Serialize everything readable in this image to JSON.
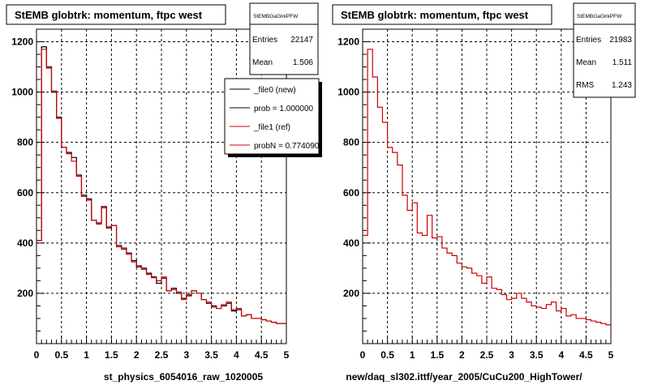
{
  "panels": [
    {
      "title": "StEMB globtrk: momentum, ftpc west",
      "stats": {
        "name": "StEMBGaGlrkPFW",
        "rows": [
          {
            "label": "Entries",
            "value": "22147"
          },
          {
            "label": "Mean",
            "value": "1.506"
          }
        ]
      },
      "legend": [
        {
          "label": "_file0 (new)",
          "color": "#000000"
        },
        {
          "label": "prob = 1.000000",
          "color": "#000000"
        },
        {
          "label": "_file1 (ref)",
          "color": "#cc0000"
        },
        {
          "label": "probN = 0.774090",
          "color": "#cc0000"
        }
      ],
      "xlabel": "st_physics_6054016_raw_1020005"
    },
    {
      "title": "StEMB globtrk: momentum, ftpc west",
      "stats": {
        "name": "StEMBGaGlrkPFW",
        "rows": [
          {
            "label": "Entries",
            "value": "21983"
          },
          {
            "label": "Mean",
            "value": "1.511"
          },
          {
            "label": "RMS",
            "value": "1.243"
          }
        ]
      },
      "xlabel": "new/daq_sl302.ittf/year_2005/CuCu200_HighTower/"
    }
  ],
  "colors": {
    "new": "#000000",
    "ref": "#cc0000",
    "grid": "#000000"
  },
  "chart_data": [
    {
      "type": "line",
      "title": "StEMB globtrk: momentum, ftpc west",
      "xlabel": "st_physics_6054016_raw_1020005",
      "ylabel": "",
      "xlim": [
        0,
        5
      ],
      "ylim": [
        0,
        1250
      ],
      "xticks": [
        "0",
        "0.5",
        "1",
        "1.5",
        "2",
        "2.5",
        "3",
        "3.5",
        "4",
        "4.5",
        "5"
      ],
      "yticks": [
        "200",
        "400",
        "600",
        "800",
        "1000",
        "1200"
      ],
      "bin_edges_start": 0,
      "bin_width": 0.1,
      "grid": true,
      "legend_position": "top-right",
      "series": [
        {
          "name": "_file0 (new)",
          "values": [
            410,
            1180,
            1100,
            1000,
            900,
            780,
            760,
            740,
            670,
            590,
            575,
            490,
            480,
            545,
            460,
            470,
            390,
            380,
            360,
            330,
            305,
            300,
            280,
            265,
            240,
            260,
            210,
            220,
            200,
            180,
            190,
            210,
            200,
            175,
            160,
            150,
            140,
            150,
            160,
            130,
            135,
            110,
            115,
            100,
            100,
            95,
            90,
            85,
            80,
            80
          ]
        },
        {
          "name": "_file1 (ref)",
          "values": [
            410,
            1170,
            1095,
            1005,
            895,
            780,
            755,
            725,
            665,
            585,
            570,
            490,
            475,
            540,
            465,
            470,
            385,
            375,
            355,
            325,
            310,
            295,
            275,
            262,
            250,
            265,
            210,
            215,
            205,
            175,
            195,
            210,
            200,
            175,
            165,
            145,
            140,
            155,
            165,
            135,
            140,
            110,
            115,
            100,
            100,
            95,
            90,
            85,
            80,
            80
          ]
        }
      ]
    },
    {
      "type": "line",
      "title": "StEMB globtrk: momentum, ftpc west",
      "xlabel": "new/daq_sl302.ittf/year_2005/CuCu200_HighTower/",
      "ylabel": "",
      "xlim": [
        0,
        5
      ],
      "ylim": [
        0,
        1250
      ],
      "xticks": [
        "0",
        "0.5",
        "1",
        "1.5",
        "2",
        "2.5",
        "3",
        "3.5",
        "4",
        "4.5",
        "5"
      ],
      "yticks": [
        "200",
        "400",
        "600",
        "800",
        "1000",
        "1200"
      ],
      "bin_edges_start": 0,
      "bin_width": 0.1,
      "grid": true,
      "series": [
        {
          "name": "",
          "values": [
            430,
            1170,
            1060,
            940,
            880,
            780,
            760,
            710,
            590,
            530,
            560,
            440,
            430,
            510,
            420,
            425,
            380,
            360,
            350,
            320,
            305,
            300,
            280,
            270,
            240,
            265,
            220,
            215,
            195,
            175,
            180,
            200,
            180,
            165,
            150,
            145,
            140,
            155,
            165,
            130,
            140,
            110,
            115,
            100,
            100,
            95,
            90,
            85,
            80,
            75
          ]
        }
      ]
    }
  ]
}
